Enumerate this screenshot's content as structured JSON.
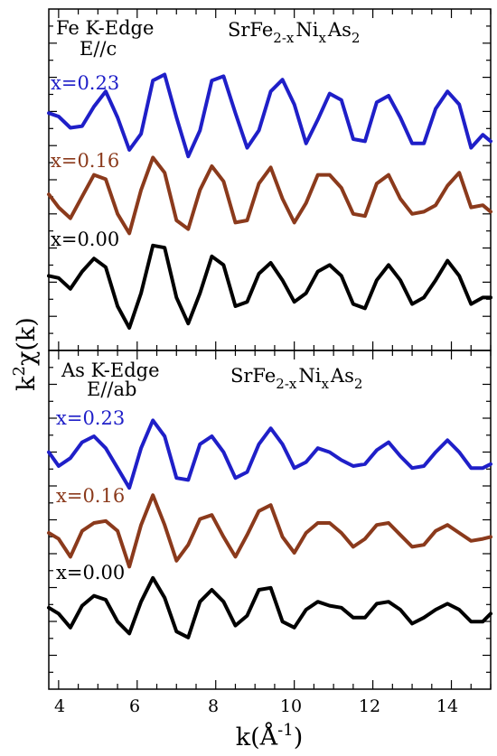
{
  "chart_data": [
    {
      "type": "line",
      "panel": "top",
      "annotation_lines": [
        "Fe K-Edge",
        "E//c"
      ],
      "compound_label": "SrFe2-xNixAs2",
      "xlim": [
        3.75,
        15.0
      ],
      "x_ticks": [
        4,
        6,
        8,
        10,
        12,
        14
      ],
      "xlabel": "k(Å-1)",
      "ylabel": "k2χ(k)",
      "grid": false,
      "series": [
        {
          "name": "x=0.23",
          "color": "#1f1fc8",
          "x": [
            3.75,
            4.0,
            4.3,
            4.6,
            4.9,
            5.2,
            5.5,
            5.8,
            6.1,
            6.4,
            6.7,
            7.0,
            7.3,
            7.6,
            7.9,
            8.2,
            8.5,
            8.8,
            9.1,
            9.4,
            9.7,
            10.0,
            10.3,
            10.6,
            10.9,
            11.2,
            11.5,
            11.8,
            12.1,
            12.4,
            12.7,
            13.0,
            13.3,
            13.6,
            13.9,
            14.2,
            14.5,
            14.8,
            15.0
          ],
          "y": [
            0.1,
            0.02,
            -0.24,
            -0.2,
            0.25,
            0.6,
            0.0,
            -0.75,
            -0.38,
            0.85,
            0.99,
            0.0,
            -0.9,
            -0.3,
            0.85,
            0.95,
            0.1,
            -0.7,
            -0.3,
            0.6,
            0.87,
            0.3,
            -0.6,
            -0.05,
            0.55,
            0.4,
            -0.5,
            -0.55,
            0.35,
            0.5,
            0.0,
            -0.6,
            -0.6,
            0.2,
            0.6,
            0.3,
            -0.7,
            -0.4,
            -0.55
          ]
        },
        {
          "name": "x=0.16",
          "color": "#8b3a1c",
          "x": [
            3.75,
            4.0,
            4.3,
            4.6,
            4.9,
            5.2,
            5.5,
            5.8,
            6.1,
            6.4,
            6.7,
            7.0,
            7.3,
            7.6,
            7.9,
            8.2,
            8.5,
            8.8,
            9.1,
            9.4,
            9.7,
            10.0,
            10.3,
            10.6,
            10.9,
            11.2,
            11.5,
            11.8,
            12.1,
            12.4,
            12.7,
            13.0,
            13.3,
            13.6,
            13.9,
            14.2,
            14.5,
            14.8,
            15.0
          ],
          "y": [
            0.1,
            -0.2,
            -0.45,
            0.05,
            0.55,
            0.45,
            -0.35,
            -0.8,
            0.2,
            0.95,
            0.6,
            -0.5,
            -0.7,
            0.2,
            0.75,
            0.4,
            -0.55,
            -0.5,
            0.35,
            0.72,
            0.0,
            -0.55,
            -0.1,
            0.55,
            0.55,
            0.25,
            -0.35,
            -0.4,
            0.35,
            0.55,
            0.0,
            -0.35,
            -0.3,
            -0.15,
            0.3,
            0.6,
            -0.2,
            -0.15,
            -0.3
          ]
        },
        {
          "name": "x=0.00",
          "color": "#000000",
          "x": [
            3.75,
            4.0,
            4.3,
            4.6,
            4.9,
            5.2,
            5.5,
            5.8,
            6.1,
            6.4,
            6.7,
            7.0,
            7.3,
            7.6,
            7.9,
            8.2,
            8.5,
            8.8,
            9.1,
            9.4,
            9.7,
            10.0,
            10.3,
            10.6,
            10.9,
            11.2,
            11.5,
            11.8,
            12.1,
            12.4,
            12.7,
            13.0,
            13.3,
            13.6,
            13.9,
            14.2,
            14.5,
            14.8,
            15.0
          ],
          "y": [
            0.2,
            0.15,
            -0.1,
            0.3,
            0.6,
            0.4,
            -0.5,
            -1.0,
            -0.2,
            0.9,
            0.85,
            -0.3,
            -0.9,
            -0.2,
            0.65,
            0.45,
            -0.5,
            -0.4,
            0.25,
            0.5,
            0.1,
            -0.4,
            -0.2,
            0.3,
            0.45,
            0.2,
            -0.45,
            -0.55,
            0.1,
            0.45,
            0.1,
            -0.45,
            -0.3,
            0.1,
            0.55,
            0.2,
            -0.45,
            -0.3,
            -0.3
          ]
        }
      ]
    },
    {
      "type": "line",
      "panel": "bottom",
      "annotation_lines": [
        "As K-Edge",
        "E//ab"
      ],
      "compound_label": "SrFe2-xNixAs2",
      "xlim": [
        3.75,
        15.0
      ],
      "x_ticks": [
        4,
        6,
        8,
        10,
        12,
        14
      ],
      "xlabel": "k(Å-1)",
      "ylabel": "k2χ(k)",
      "grid": false,
      "series": [
        {
          "name": "x=0.23",
          "color": "#1f1fc8",
          "x": [
            3.75,
            4.0,
            4.3,
            4.6,
            4.9,
            5.2,
            5.5,
            5.8,
            6.1,
            6.4,
            6.7,
            7.0,
            7.3,
            7.6,
            7.9,
            8.2,
            8.5,
            8.8,
            9.1,
            9.4,
            9.7,
            10.0,
            10.3,
            10.6,
            10.9,
            11.2,
            11.5,
            11.8,
            12.1,
            12.4,
            12.7,
            13.0,
            13.3,
            13.6,
            13.9,
            14.2,
            14.5,
            14.8,
            15.0
          ],
          "y": [
            0.1,
            -0.25,
            -0.05,
            0.35,
            0.5,
            0.2,
            -0.3,
            -0.8,
            0.2,
            0.9,
            0.5,
            -0.55,
            -0.6,
            0.3,
            0.5,
            0.1,
            -0.55,
            -0.4,
            0.3,
            0.7,
            0.3,
            -0.3,
            -0.15,
            0.2,
            0.1,
            -0.1,
            -0.25,
            -0.2,
            0.15,
            0.35,
            0.0,
            -0.3,
            -0.25,
            0.1,
            0.4,
            0.1,
            -0.3,
            -0.3,
            -0.2
          ]
        },
        {
          "name": "x=0.16",
          "color": "#8b3a1c",
          "x": [
            3.75,
            4.0,
            4.3,
            4.6,
            4.9,
            5.2,
            5.5,
            5.8,
            6.1,
            6.4,
            6.7,
            7.0,
            7.3,
            7.6,
            7.9,
            8.2,
            8.5,
            8.8,
            9.1,
            9.4,
            9.7,
            10.0,
            10.3,
            10.6,
            10.9,
            11.2,
            11.5,
            11.8,
            12.1,
            12.4,
            12.7,
            13.0,
            13.3,
            13.6,
            13.9,
            14.2,
            14.5,
            14.8,
            15.0
          ],
          "y": [
            0.0,
            -0.15,
            -0.6,
            0.05,
            0.25,
            0.3,
            0.05,
            -0.85,
            0.2,
            0.95,
            0.2,
            -0.7,
            -0.3,
            0.35,
            0.45,
            -0.1,
            -0.6,
            -0.05,
            0.55,
            0.7,
            -0.1,
            -0.5,
            0.0,
            0.25,
            0.25,
            0.0,
            -0.35,
            -0.15,
            0.2,
            0.25,
            -0.05,
            -0.35,
            -0.3,
            0.05,
            0.2,
            0.0,
            -0.2,
            -0.15,
            -0.1
          ]
        },
        {
          "name": "x=0.00",
          "color": "#000000",
          "x": [
            3.75,
            4.0,
            4.3,
            4.6,
            4.9,
            5.2,
            5.5,
            5.8,
            6.1,
            6.4,
            6.7,
            7.0,
            7.3,
            7.6,
            7.9,
            8.2,
            8.5,
            8.8,
            9.1,
            9.4,
            9.7,
            10.0,
            10.3,
            10.6,
            10.9,
            11.2,
            11.5,
            11.8,
            12.1,
            12.4,
            12.7,
            13.0,
            13.3,
            13.6,
            13.9,
            14.2,
            14.5,
            14.8,
            15.0
          ],
          "y": [
            0.05,
            -0.1,
            -0.45,
            0.1,
            0.35,
            0.25,
            -0.3,
            -0.6,
            0.2,
            0.8,
            0.3,
            -0.55,
            -0.7,
            0.2,
            0.5,
            0.2,
            -0.4,
            -0.15,
            0.5,
            0.55,
            -0.3,
            -0.45,
            0.0,
            0.2,
            0.1,
            0.05,
            -0.2,
            -0.2,
            0.15,
            0.2,
            0.0,
            -0.35,
            -0.2,
            0.0,
            0.15,
            0.0,
            -0.3,
            -0.3,
            -0.1
          ]
        }
      ]
    }
  ],
  "labels": {
    "top_edge_line1": "Fe K-Edge",
    "top_edge_line2": "E//c",
    "bottom_edge_line1": "As K-Edge",
    "bottom_edge_line2": "E//ab",
    "compound_main": "SrFe",
    "compound_sub1": "2-x",
    "compound_mid": "Ni",
    "compound_sub2": "x",
    "compound_tail": "As",
    "compound_sub3": "2",
    "series_a": "x=0.23",
    "series_b": "x=0.16",
    "series_c": "x=0.00",
    "ylabel_main": "k",
    "ylabel_sup": "2",
    "ylabel_tail": "χ(k)",
    "xlabel_main": "k(Å",
    "xlabel_sup": "-1",
    "xlabel_tail": ")",
    "tick_labels": [
      "4",
      "6",
      "8",
      "10",
      "12",
      "14"
    ]
  }
}
